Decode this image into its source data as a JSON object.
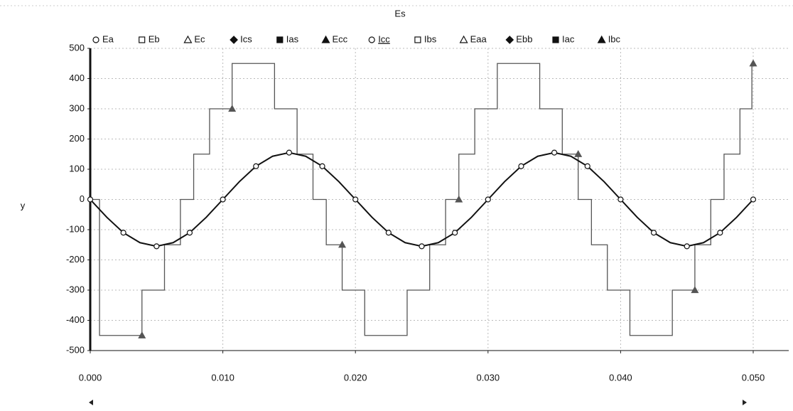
{
  "chart_data": {
    "type": "line",
    "title": "Es",
    "y_label": "y",
    "xlim": [
      0,
      0.05
    ],
    "ylim": [
      -500,
      500
    ],
    "xticks": [
      {
        "value": 0,
        "label": "0.000"
      },
      {
        "value": 0.01,
        "label": "0.010"
      },
      {
        "value": 0.02,
        "label": "0.020"
      },
      {
        "value": 0.03,
        "label": "0.030"
      },
      {
        "value": 0.04,
        "label": "0.040"
      },
      {
        "value": 0.05,
        "label": "0.050"
      }
    ],
    "yticks": [
      -500,
      -400,
      -300,
      -200,
      -100,
      0,
      100,
      200,
      300,
      400,
      500
    ],
    "grid": true,
    "series": [
      {
        "name": "Ea",
        "marker": "circle-open"
      },
      {
        "name": "Eb",
        "marker": "square-open"
      },
      {
        "name": "Ec",
        "marker": "triangle-open"
      },
      {
        "name": "Ics",
        "marker": "diamond-filled"
      },
      {
        "name": "Ias",
        "marker": "square-filled"
      },
      {
        "name": "Ecc",
        "marker": "triangle-filled",
        "color": "#555555",
        "x": [
          0,
          0.0007,
          0.0007,
          0.0039,
          0.0039,
          0.0056,
          0.0056,
          0.0068,
          0.0068,
          0.0078,
          0.0078,
          0.009,
          0.009,
          0.0107,
          0.0107,
          0.0139,
          0.0139,
          0.0156,
          0.0156,
          0.0168,
          0.0168,
          0.0178,
          0.0178,
          0.019,
          0.019,
          0.0207,
          0.0207,
          0.0239,
          0.0239,
          0.0256,
          0.0256,
          0.0268,
          0.0268,
          0.0278,
          0.0278,
          0.029,
          0.029,
          0.0307,
          0.0307,
          0.0339,
          0.0339,
          0.0356,
          0.0356,
          0.0368,
          0.0368,
          0.0378,
          0.0378,
          0.039,
          0.039,
          0.0407,
          0.0407,
          0.0439,
          0.0439,
          0.0456,
          0.0456,
          0.0468,
          0.0468,
          0.0478,
          0.0478,
          0.049,
          0.049,
          0.0499,
          0.0499,
          0.05
        ],
        "values": [
          0,
          0,
          -450,
          -450,
          -300,
          -300,
          -150,
          -150,
          0,
          0,
          150,
          150,
          300,
          300,
          450,
          450,
          300,
          300,
          150,
          150,
          0,
          0,
          -150,
          -150,
          -300,
          -300,
          -450,
          -450,
          -300,
          -300,
          -150,
          -150,
          0,
          0,
          150,
          150,
          300,
          300,
          450,
          450,
          300,
          300,
          150,
          150,
          0,
          0,
          -150,
          -150,
          -300,
          -300,
          -450,
          -450,
          -300,
          -300,
          -150,
          -150,
          0,
          0,
          150,
          150,
          300,
          300,
          450,
          450
        ]
      },
      {
        "name": "Icc",
        "marker": "circle-open",
        "selected": true,
        "color": "#111111",
        "x": [
          0,
          0.00125,
          0.0025,
          0.00375,
          0.005,
          0.00625,
          0.0075,
          0.00875,
          0.01,
          0.01125,
          0.0125,
          0.01375,
          0.015,
          0.01625,
          0.0175,
          0.01875,
          0.02,
          0.02125,
          0.0225,
          0.02375,
          0.025,
          0.02625,
          0.0275,
          0.02875,
          0.03,
          0.03125,
          0.0325,
          0.03375,
          0.035,
          0.03625,
          0.0375,
          0.03875,
          0.04,
          0.04125,
          0.0425,
          0.04375,
          0.045,
          0.04625,
          0.0475,
          0.04875,
          0.05
        ],
        "values": [
          0,
          -59,
          -110,
          -143,
          -155,
          -143,
          -110,
          -59,
          0,
          59,
          110,
          143,
          155,
          143,
          110,
          59,
          0,
          -59,
          -110,
          -143,
          -155,
          -143,
          -110,
          -59,
          0,
          59,
          110,
          143,
          155,
          143,
          110,
          59,
          0,
          -59,
          -110,
          -143,
          -155,
          -143,
          -110,
          -59,
          0
        ]
      },
      {
        "name": "Ibs",
        "marker": "square-open"
      },
      {
        "name": "Eaa",
        "marker": "triangle-open"
      },
      {
        "name": "Ebb",
        "marker": "diamond-filled"
      },
      {
        "name": "Iac",
        "marker": "square-filled"
      },
      {
        "name": "Ibc",
        "marker": "triangle-filled"
      }
    ]
  }
}
